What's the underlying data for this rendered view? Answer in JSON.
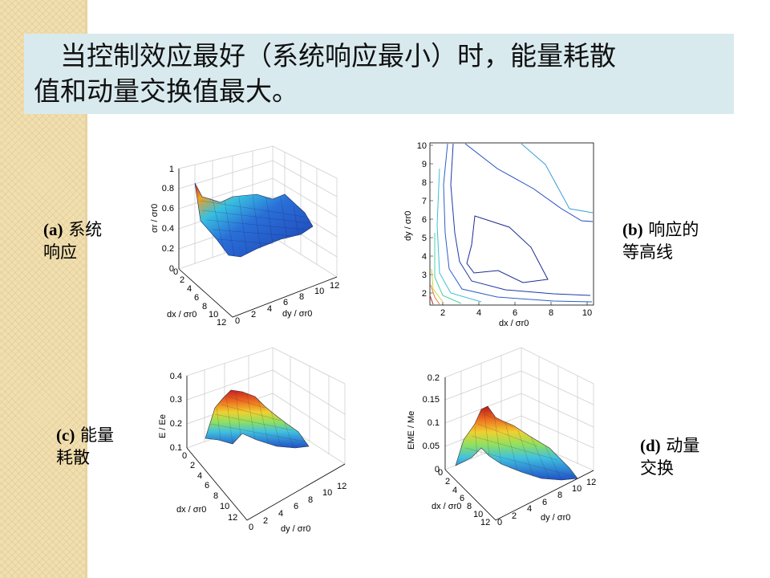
{
  "slide": {
    "title_lines": [
      "　当控制效应最好（系统响应最小）时，能量耗散",
      "值和动量交换值最大。"
    ],
    "colors": {
      "title_bg": "#d9eaef",
      "strip": "#f1dfb0"
    }
  },
  "panels": {
    "a": {
      "tag": "(a)",
      "caption_lines": [
        "系统",
        "响应"
      ],
      "zlabel": "σr / σr0",
      "xlabel": "dx / σr0",
      "ylabel": "dy / σr0",
      "zticks": [
        "0",
        "0.2",
        "0.4",
        "0.6",
        "0.8",
        "1"
      ],
      "xticks": [
        "0",
        "2",
        "4",
        "6",
        "8",
        "10",
        "12"
      ],
      "yticks": [
        "0",
        "2",
        "4",
        "6",
        "8",
        "10",
        "12"
      ]
    },
    "b": {
      "tag": "(b)",
      "caption_lines": [
        "响应的",
        "等高线"
      ],
      "xlabel": "dx / σr0",
      "ylabel": "dy / σr0",
      "xticks": [
        "2",
        "4",
        "6",
        "8",
        "10"
      ],
      "yticks": [
        "2",
        "3",
        "4",
        "5",
        "6",
        "7",
        "8",
        "9",
        "10"
      ]
    },
    "c": {
      "tag": "(c)",
      "caption_lines": [
        "能量",
        "耗散"
      ],
      "zlabel": "E / Ee",
      "xlabel": "dx / σr0",
      "ylabel": "dy / σr0",
      "zticks": [
        "0.1",
        "0.2",
        "0.3",
        "0.4"
      ],
      "xticks": [
        "0",
        "2",
        "4",
        "6",
        "8",
        "10",
        "12"
      ],
      "yticks": [
        "0",
        "2",
        "4",
        "6",
        "8",
        "10",
        "12"
      ]
    },
    "d": {
      "tag": "(d)",
      "caption_lines": [
        "动量",
        "交换"
      ],
      "zlabel": "EME / Me",
      "xlabel": "dx / σr0",
      "ylabel": "dy / σr0",
      "zticks": [
        "0",
        "0.05",
        "0.1",
        "0.15",
        "0.2"
      ],
      "xticks": [
        "0",
        "2",
        "4",
        "6",
        "8",
        "10",
        "12"
      ],
      "yticks": [
        "0",
        "2",
        "4",
        "6",
        "8",
        "10",
        "12"
      ]
    }
  }
}
